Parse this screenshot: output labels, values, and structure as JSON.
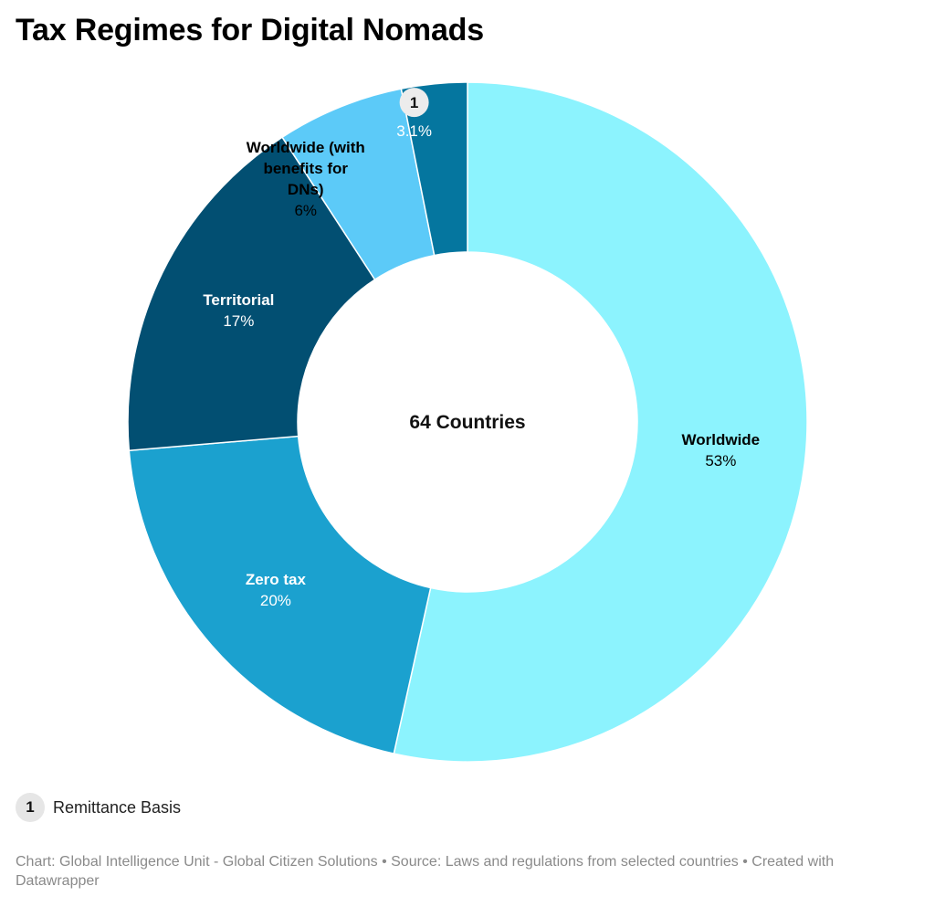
{
  "title": "Tax Regimes for Digital Nomads",
  "chart_data": {
    "type": "pie",
    "center_label": "64 Countries",
    "slices": [
      {
        "name": [
          "Worldwide"
        ],
        "value": 53,
        "value_label": "53%",
        "color": "#8cf3fe",
        "text_color": "#000000"
      },
      {
        "name": [
          "Zero tax"
        ],
        "value": 20,
        "value_label": "20%",
        "color": "#1ba1cf",
        "text_color": "#ffffff"
      },
      {
        "name": [
          "Territorial"
        ],
        "value": 17,
        "value_label": "17%",
        "color": "#024f72",
        "text_color": "#ffffff"
      },
      {
        "name": [
          "Worldwide (with",
          "benefits for",
          "DNs)"
        ],
        "value": 6,
        "value_label": "6%",
        "color": "#5ccaf8",
        "text_color": "#000000"
      },
      {
        "name": [],
        "value": 3.1,
        "value_label": "3.1%",
        "color": "#05769f",
        "text_color": "#ffffff",
        "note_marker": "1"
      }
    ]
  },
  "legend_note": {
    "marker": "1",
    "text": "Remittance Basis"
  },
  "footer": "Chart: Global Intelligence Unit - Global Citizen Solutions  • Source: Laws and regulations from selected countries  • Created with Datawrapper"
}
